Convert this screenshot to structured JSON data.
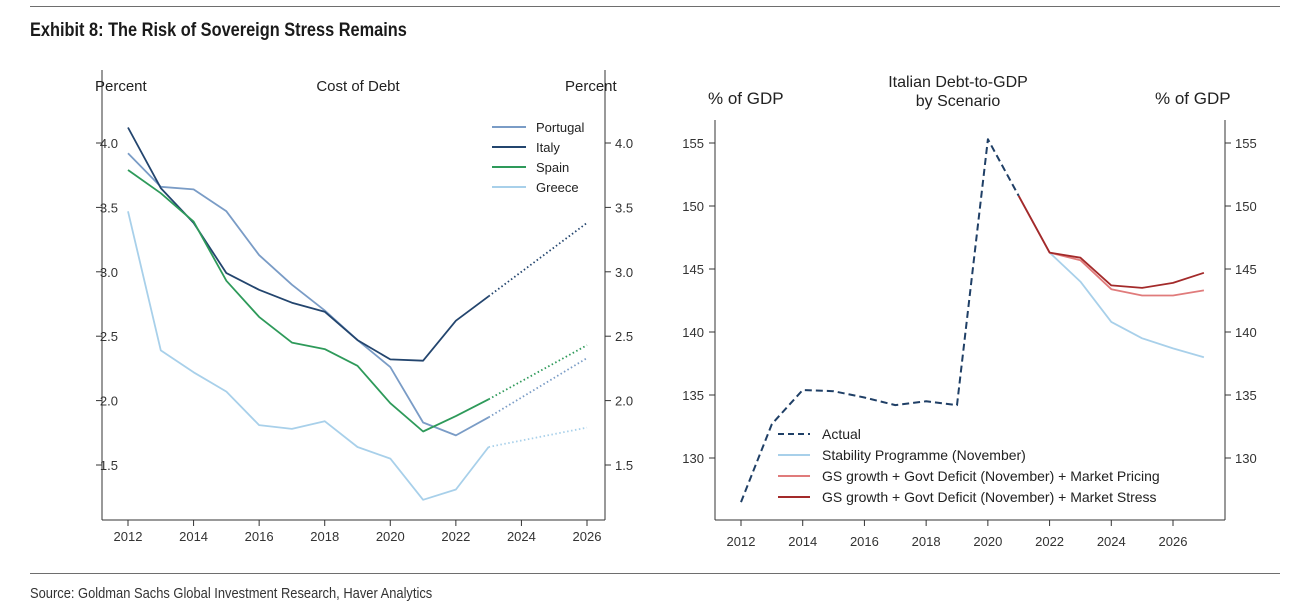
{
  "exhibit_title": "Exhibit 8: The Risk of Sovereign Stress Remains",
  "source_text": "Source: Goldman Sachs Global Investment Research, Haver Analytics",
  "chart_data": [
    {
      "type": "line",
      "title": "Cost of Debt",
      "ylabel_left": "Percent",
      "ylabel_right": "Percent",
      "ylim": [
        1.1,
        4.2
      ],
      "yticks": [
        1.5,
        2.0,
        2.5,
        3.0,
        3.5,
        4.0
      ],
      "ytick_labels": [
        "1.5",
        "2.0",
        "2.5",
        "3.0",
        "3.5",
        "4.0"
      ],
      "xlim": [
        2012,
        2026
      ],
      "xticks": [
        2012,
        2014,
        2016,
        2018,
        2020,
        2022,
        2024,
        2026
      ],
      "xtick_labels": [
        "2012",
        "2014",
        "2016",
        "2018",
        "2020",
        "2022",
        "2024",
        "2026"
      ],
      "legend_position": "top-right",
      "series": [
        {
          "name": "Portugal",
          "color": "#7a9cc6",
          "x": [
            2012,
            2013,
            2014,
            2015,
            2016,
            2017,
            2018,
            2019,
            2020,
            2021,
            2022,
            2023
          ],
          "values": [
            3.92,
            3.66,
            3.64,
            3.47,
            3.13,
            2.9,
            2.7,
            2.47,
            2.26,
            1.83,
            1.73,
            1.87
          ],
          "projection_x": [
            2023,
            2026
          ],
          "projection": [
            1.87,
            2.33
          ]
        },
        {
          "name": "Italy",
          "color": "#23456e",
          "x": [
            2012,
            2013,
            2014,
            2015,
            2016,
            2017,
            2018,
            2019,
            2020,
            2021,
            2022,
            2023
          ],
          "values": [
            4.12,
            3.65,
            3.38,
            2.99,
            2.86,
            2.76,
            2.69,
            2.47,
            2.32,
            2.31,
            2.62,
            2.81
          ],
          "projection_x": [
            2023,
            2026
          ],
          "projection": [
            2.81,
            3.38
          ]
        },
        {
          "name": "Spain",
          "color": "#2e9a5a",
          "x": [
            2012,
            2013,
            2014,
            2015,
            2016,
            2017,
            2018,
            2019,
            2020,
            2021,
            2022,
            2023
          ],
          "values": [
            3.79,
            3.61,
            3.39,
            2.93,
            2.65,
            2.45,
            2.4,
            2.27,
            1.98,
            1.76,
            1.88,
            2.01
          ],
          "projection_x": [
            2023,
            2026
          ],
          "projection": [
            2.01,
            2.43
          ]
        },
        {
          "name": "Greece",
          "color": "#a8d0ea",
          "x": [
            2012,
            2013,
            2014,
            2015,
            2016,
            2017,
            2018,
            2019,
            2020,
            2021,
            2022,
            2023
          ],
          "values": [
            3.47,
            2.39,
            2.22,
            2.07,
            1.81,
            1.78,
            1.84,
            1.64,
            1.55,
            1.23,
            1.31,
            1.64
          ],
          "projection_x": [
            2023,
            2026
          ],
          "projection": [
            1.64,
            1.79
          ]
        }
      ]
    },
    {
      "type": "line",
      "title": "Italian Debt-to-GDP",
      "subtitle": "by Scenario",
      "ylabel_left": "% of GDP",
      "ylabel_right": "% of GDP",
      "ylim": [
        125,
        158
      ],
      "yticks": [
        130,
        135,
        140,
        145,
        150,
        155
      ],
      "ytick_labels": [
        "130",
        "135",
        "140",
        "145",
        "150",
        "155"
      ],
      "xlim": [
        2011.5,
        2027.5
      ],
      "xticks": [
        2012,
        2014,
        2016,
        2018,
        2020,
        2022,
        2024,
        2026
      ],
      "xtick_labels": [
        "2012",
        "2014",
        "2016",
        "2018",
        "2020",
        "2022",
        "2024",
        "2026"
      ],
      "legend_position": "bottom-left",
      "series": [
        {
          "name": "Actual",
          "color": "#1f3f66",
          "dashed": true,
          "x": [
            2012,
            2013,
            2014,
            2015,
            2016,
            2017,
            2018,
            2019,
            2020,
            2021
          ],
          "values": [
            126.5,
            132.7,
            135.4,
            135.3,
            134.8,
            134.2,
            134.5,
            134.2,
            155.3,
            150.8
          ]
        },
        {
          "name": "Stability Programme (November)",
          "color": "#a8d0ea",
          "x": [
            2021,
            2022,
            2023,
            2024,
            2025,
            2026,
            2027
          ],
          "values": [
            150.8,
            146.3,
            144.0,
            140.8,
            139.5,
            138.7,
            138.0
          ]
        },
        {
          "name": "GS growth + Govt Deficit (November) + Market Pricing",
          "color": "#e07b7b",
          "x": [
            2021,
            2022,
            2023,
            2024,
            2025,
            2026,
            2027
          ],
          "values": [
            150.8,
            146.3,
            145.7,
            143.4,
            142.9,
            142.9,
            143.3
          ]
        },
        {
          "name": "GS growth + Govt Deficit (November) + Market Stress",
          "color": "#a32a2a",
          "x": [
            2021,
            2022,
            2023,
            2024,
            2025,
            2026,
            2027
          ],
          "values": [
            150.8,
            146.3,
            145.9,
            143.7,
            143.5,
            143.9,
            144.7
          ]
        }
      ]
    }
  ]
}
